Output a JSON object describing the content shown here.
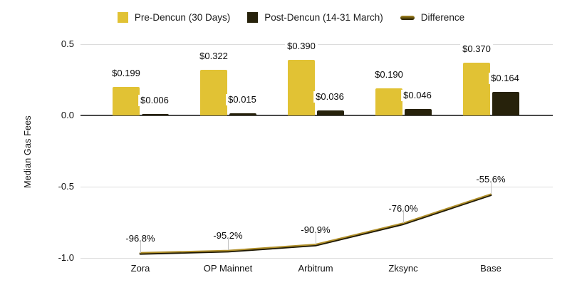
{
  "legend": {
    "pre_swatch_color": "#e1c234",
    "post_swatch_color": "#27220b",
    "line_swatch_color": "#6b570f"
  },
  "chart_data": {
    "type": "combo-bar-line",
    "title": "",
    "xlabel": "",
    "ylabel": "Median Gas Fees",
    "ylim": [
      -1.0,
      0.5
    ],
    "grid": true,
    "legend_position": "top",
    "y_ticks": [
      0.5,
      0.0,
      -0.5,
      -1.0
    ],
    "y_tick_labels": [
      "0.5",
      "0.0",
      "-0.5",
      "-1.0"
    ],
    "categories": [
      "Zora",
      "OP Mainnet",
      "Arbitrum",
      "Zksync",
      "Base"
    ],
    "series": [
      {
        "name": "Pre-Dencun (30 Days)",
        "type": "bar",
        "color": "#e1c234",
        "values": [
          0.199,
          0.322,
          0.39,
          0.19,
          0.37
        ],
        "labels": [
          "$0.199",
          "$0.322",
          "$0.390",
          "$0.190",
          "$0.370"
        ]
      },
      {
        "name": "Post-Dencun (14-31 March)",
        "type": "bar",
        "color": "#27220b",
        "values": [
          0.006,
          0.015,
          0.036,
          0.046,
          0.164
        ],
        "labels": [
          "$0.006",
          "$0.015",
          "$0.036",
          "$0.046",
          "$0.164"
        ]
      },
      {
        "name": "Difference",
        "type": "line",
        "color": "#b08f2a",
        "color_shadow": "#1f1904",
        "values": [
          -0.968,
          -0.952,
          -0.909,
          -0.76,
          -0.556
        ],
        "labels": [
          "-96.8%",
          "-95.2%",
          "-90.9%",
          "-76.0%",
          "-55.6%"
        ]
      }
    ]
  }
}
